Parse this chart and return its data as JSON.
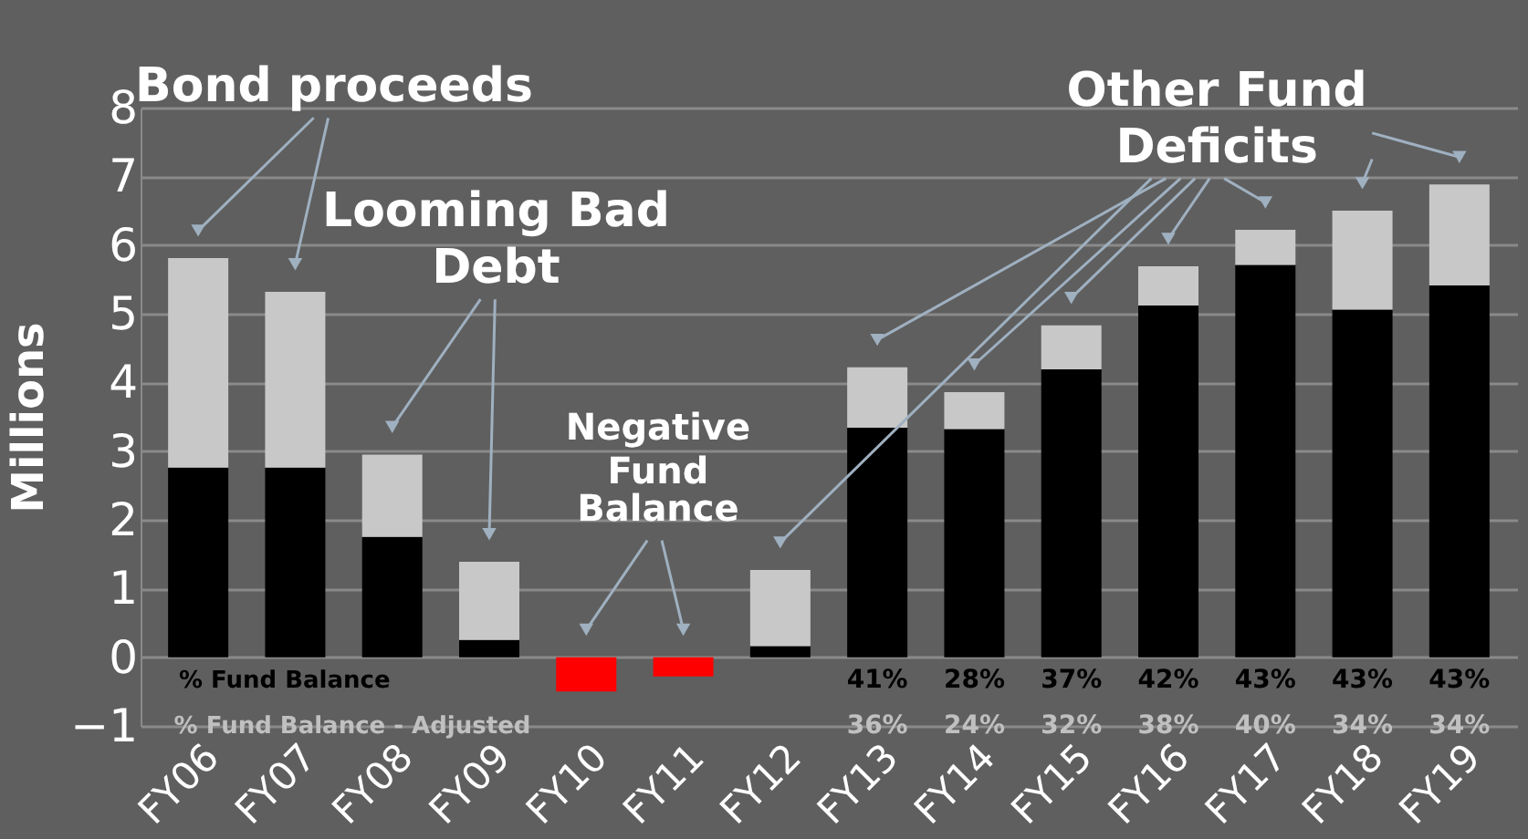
{
  "chart_data": {
    "type": "bar",
    "stacked": true,
    "ylabel": "Millions",
    "categories": [
      "FY06",
      "FY07",
      "FY08",
      "FY09",
      "FY10",
      "FY11",
      "FY12",
      "FY13",
      "FY14",
      "FY15",
      "FY16",
      "FY17",
      "FY18",
      "FY19"
    ],
    "series": [
      {
        "color": "#000000",
        "values": [
          2.76,
          2.76,
          1.75,
          0.25,
          null,
          null,
          0.16,
          3.34,
          3.32,
          4.19,
          5.12,
          5.71,
          5.06,
          5.41
        ]
      },
      {
        "color": "#c8c8c8",
        "values": [
          3.05,
          2.56,
          1.2,
          1.14,
          null,
          null,
          1.11,
          0.88,
          0.54,
          0.64,
          0.57,
          0.51,
          1.44,
          1.47
        ]
      },
      {
        "color": "#ff0000",
        "values": [
          null,
          null,
          null,
          null,
          -0.5,
          -0.28,
          null,
          null,
          null,
          null,
          null,
          null,
          null,
          null
        ]
      }
    ],
    "ylim": [
      -1,
      8
    ],
    "yticks": [
      -1,
      0,
      1,
      2,
      3,
      4,
      5,
      6,
      7,
      8
    ],
    "grid": "y",
    "annotations": [
      "Bond proceeds",
      "Looming Bad Debt",
      "Negative Fund Balance",
      "Other Fund Deficits",
      "% Fund Balance",
      "% Fund Balance - Adjusted",
      "41%",
      "28%",
      "37%",
      "42%",
      "43%",
      "43%",
      "43%",
      "36%",
      "24%",
      "32%",
      "38%",
      "40%",
      "34%",
      "34%"
    ]
  }
}
